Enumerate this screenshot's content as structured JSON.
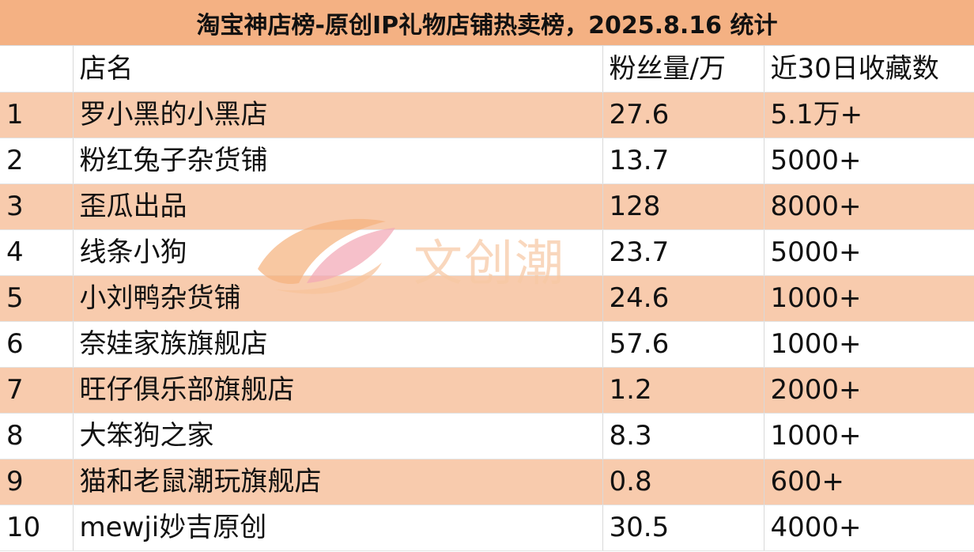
{
  "title": "淘宝神店榜-原创IP礼物店铺热卖榜，2025.8.16 统计",
  "table": {
    "headers": [
      "",
      "店名",
      "粉丝量/万",
      "近30日收藏数"
    ],
    "rows": [
      [
        "1",
        "罗小黑的小黑店",
        "27.6",
        "5.1万+"
      ],
      [
        "2",
        "粉红兔子杂货铺",
        "13.7",
        "5000+"
      ],
      [
        "3",
        "歪瓜出品",
        "128",
        "8000+"
      ],
      [
        "4",
        "线条小狗",
        "23.7",
        "5000+"
      ],
      [
        "5",
        "小刘鸭杂货铺",
        "24.6",
        "1000+"
      ],
      [
        "6",
        "奈娃家族旗舰店",
        "57.6",
        "1000+"
      ],
      [
        "7",
        "旺仔俱乐部旗舰店",
        "1.2",
        "2000+"
      ],
      [
        "8",
        "大笨狗之家",
        "8.3",
        "1000+"
      ],
      [
        "9",
        "猫和老鼠潮玩旗舰店",
        "0.8",
        "600+"
      ],
      [
        "10",
        "mewji妙吉原创",
        "30.5",
        "4000+"
      ]
    ]
  },
  "watermark": {
    "text": "文创潮",
    "logo_icon": "wenchuangchao-logo-icon",
    "colors": {
      "orange": "#f6a86a",
      "pink": "#f3a0b0"
    }
  },
  "colors": {
    "title_bg": "#f4b183",
    "odd_row_bg": "#f8cbad",
    "grid": "#d9d9d9"
  }
}
